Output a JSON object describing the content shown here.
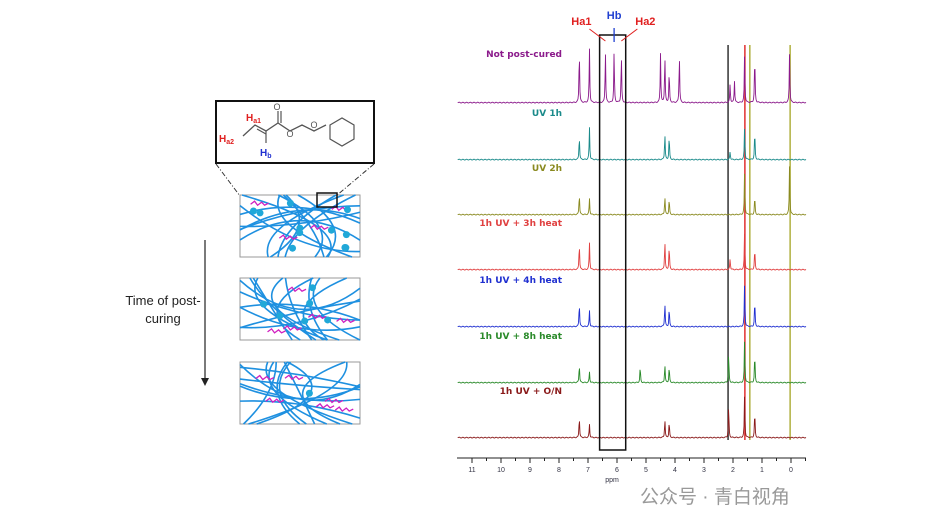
{
  "figure": {
    "time_label": "Time of post-curing",
    "molecule_labels": {
      "ha1": "a1",
      "ha2": "a2",
      "hb": "b",
      "h": "H"
    },
    "watermark": "公众号 · 青白视角"
  },
  "chart_data": {
    "type": "line",
    "xlabel": "ppm",
    "xlim": [
      11.3,
      -0.2
    ],
    "x_reversed": true,
    "x_ticks": [
      11,
      10,
      9,
      8,
      7,
      6,
      5,
      4,
      3,
      2,
      1,
      0
    ],
    "highlight_region_ppm": [
      6.6,
      5.7
    ],
    "peak_annotations": [
      {
        "label": "Ha1",
        "ppm": 6.4,
        "color": "#e02020"
      },
      {
        "label": "Hb",
        "ppm": 6.1,
        "color": "#2040d0"
      },
      {
        "label": "Ha2",
        "ppm": 5.85,
        "color": "#e02020"
      }
    ],
    "reference_lines": [
      {
        "ppm": 2.17,
        "color": "#333333"
      },
      {
        "ppm": 1.59,
        "color": "#e03030"
      },
      {
        "ppm": 1.42,
        "color": "#b0b040"
      },
      {
        "ppm": 0.03,
        "color": "#b0b040"
      }
    ],
    "series": [
      {
        "name": "Not post-cured",
        "color": "#8b1a8b",
        "peaks": [
          [
            7.3,
            1
          ],
          [
            6.95,
            1
          ],
          [
            6.4,
            0.95
          ],
          [
            6.1,
            0.95
          ],
          [
            5.85,
            0.9
          ],
          [
            4.5,
            0.9
          ],
          [
            4.35,
            0.9
          ],
          [
            4.2,
            0.6
          ],
          [
            3.85,
            0.9
          ],
          [
            2.1,
            0.35
          ],
          [
            1.95,
            0.4
          ],
          [
            1.6,
            0.9
          ],
          [
            1.25,
            0.9
          ],
          [
            0.05,
            0.9
          ]
        ]
      },
      {
        "name": "UV 1h",
        "color": "#1a8a8a",
        "peaks": [
          [
            7.3,
            0.45
          ],
          [
            6.95,
            0.6
          ],
          [
            4.35,
            0.5
          ],
          [
            4.2,
            0.45
          ],
          [
            2.1,
            0.15
          ],
          [
            1.6,
            0.6
          ],
          [
            1.25,
            0.55
          ]
        ]
      },
      {
        "name": "UV 2h",
        "color": "#8a8a20",
        "peaks": [
          [
            7.3,
            0.4
          ],
          [
            6.95,
            0.3
          ],
          [
            4.35,
            0.35
          ],
          [
            4.2,
            0.3
          ],
          [
            1.6,
            0.8
          ],
          [
            1.25,
            0.35
          ],
          [
            0.05,
            0.9
          ]
        ]
      },
      {
        "name": "1h UV + 3h heat",
        "color": "#e04040",
        "peaks": [
          [
            7.3,
            0.5
          ],
          [
            6.95,
            0.5
          ],
          [
            4.35,
            0.55
          ],
          [
            4.2,
            0.45
          ],
          [
            2.1,
            0.2
          ],
          [
            1.6,
            0.7
          ],
          [
            1.25,
            0.4
          ]
        ]
      },
      {
        "name": "1h UV + 4h heat",
        "color": "#2030d0",
        "peaks": [
          [
            7.3,
            0.45
          ],
          [
            6.95,
            0.3
          ],
          [
            4.35,
            0.45
          ],
          [
            4.2,
            0.35
          ],
          [
            1.6,
            0.8
          ],
          [
            1.25,
            0.5
          ]
        ]
      },
      {
        "name": "1h UV + 8h heat",
        "color": "#2a8a2a",
        "peaks": [
          [
            7.3,
            0.35
          ],
          [
            6.95,
            0.2
          ],
          [
            5.2,
            0.3
          ],
          [
            4.35,
            0.35
          ],
          [
            4.2,
            0.3
          ],
          [
            2.15,
            0.55
          ],
          [
            1.6,
            0.8
          ],
          [
            1.25,
            0.55
          ]
        ]
      },
      {
        "name": "1h UV + O/N",
        "color": "#8a1a1a",
        "peaks": [
          [
            7.3,
            0.4
          ],
          [
            6.95,
            0.25
          ],
          [
            4.35,
            0.35
          ],
          [
            4.2,
            0.3
          ],
          [
            2.15,
            0.6
          ],
          [
            1.6,
            0.8
          ],
          [
            1.25,
            0.5
          ]
        ]
      }
    ]
  }
}
